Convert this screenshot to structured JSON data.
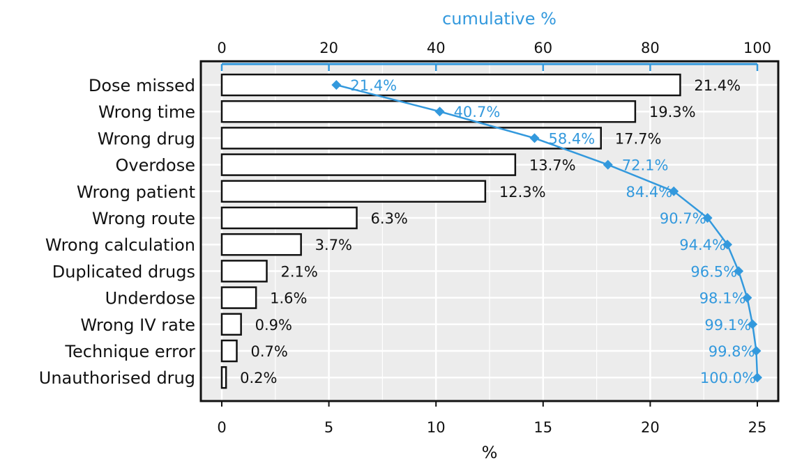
{
  "colors": {
    "accent": "#3399dd",
    "panel": "#ececec",
    "grid": "#ffffff",
    "bar_fill": "#ffffff",
    "bar_stroke": "#111111",
    "frame": "#111111"
  },
  "chart_data": {
    "type": "bar",
    "orientation": "horizontal",
    "title": "",
    "xlabel": "%",
    "x2label": "cumulative %",
    "xlim": [
      0,
      25
    ],
    "x2lim": [
      0,
      100
    ],
    "xticks": [
      0,
      5,
      10,
      15,
      20,
      25
    ],
    "x2ticks": [
      0,
      20,
      40,
      60,
      80,
      100
    ],
    "grid": true,
    "categories": [
      "Dose missed",
      "Wrong time",
      "Wrong drug",
      "Overdose",
      "Wrong patient",
      "Wrong route",
      "Wrong calculation",
      "Duplicated drugs",
      "Underdose",
      "Wrong IV rate",
      "Technique error",
      "Unauthorised drug"
    ],
    "series": [
      {
        "type": "bar",
        "values": [
          21.4,
          19.3,
          17.7,
          13.7,
          12.3,
          6.3,
          3.7,
          2.1,
          1.6,
          0.9,
          0.7,
          0.2
        ],
        "labels": [
          "21.4%",
          "19.3%",
          "17.7%",
          "13.7%",
          "12.3%",
          "6.3%",
          "3.7%",
          "2.1%",
          "1.6%",
          "0.9%",
          "0.7%",
          "0.2%"
        ]
      },
      {
        "type": "line",
        "axis": "top",
        "values": [
          21.4,
          40.7,
          58.4,
          72.1,
          84.4,
          90.7,
          94.4,
          96.5,
          98.1,
          99.1,
          99.8,
          100.0
        ],
        "labels": [
          "21.4%",
          "40.7%",
          "58.4%",
          "72.1%",
          "84.4%",
          "90.7%",
          "94.4%",
          "96.5%",
          "98.1%",
          "99.1%",
          "99.8%",
          "100.0%"
        ],
        "color": "#3399dd",
        "marker": "diamond"
      }
    ]
  }
}
